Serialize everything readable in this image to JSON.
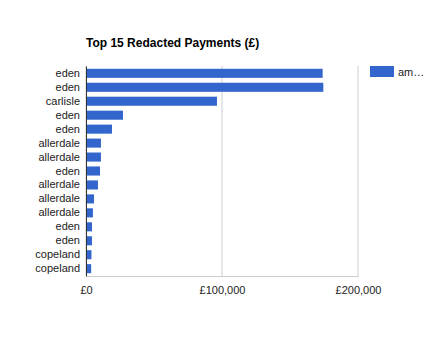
{
  "chart_data": {
    "type": "bar",
    "title": "Top 15 Redacted Payments (£)",
    "orientation": "horizontal",
    "categories": [
      "eden",
      "eden",
      "carlisle",
      "eden",
      "eden",
      "allerdale",
      "allerdale",
      "eden",
      "allerdale",
      "allerdale",
      "allerdale",
      "eden",
      "eden",
      "copeland",
      "copeland"
    ],
    "series": [
      {
        "name": "am…",
        "color": "#3366cc",
        "values": [
          174000,
          174500,
          96300,
          27200,
          19100,
          11000,
          11000,
          10300,
          8800,
          5900,
          5100,
          4400,
          4400,
          4000,
          3800
        ]
      }
    ],
    "xlim": [
      0,
      200000
    ],
    "xticks": [
      {
        "value": 0,
        "label": "£0"
      },
      {
        "value": 100000,
        "label": "£100,000"
      },
      {
        "value": 200000,
        "label": "£200,000"
      }
    ],
    "grid": true,
    "legend": "right"
  }
}
